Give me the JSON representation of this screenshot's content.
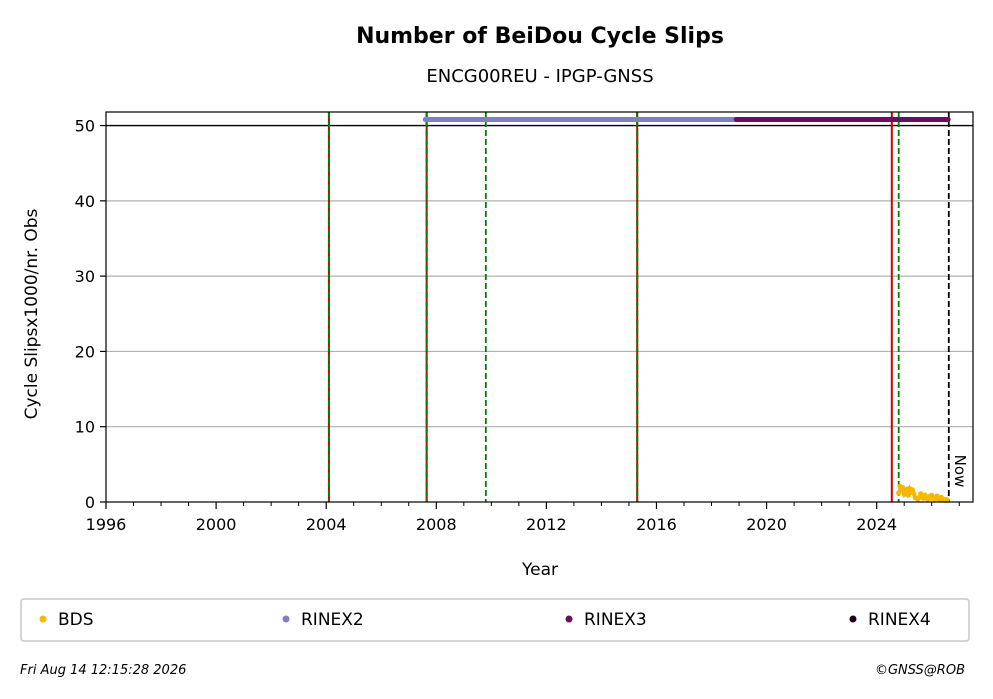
{
  "chart_data": {
    "type": "line",
    "title": "Number of BeiDou Cycle Slips",
    "subtitle": "ENCG00REU - IPGP-GNSS",
    "xlabel": "Year",
    "ylabel": "Cycle Slipsx1000/nr. Obs",
    "xlim": [
      1996,
      2027.5
    ],
    "ylim": [
      0,
      51.8
    ],
    "x_ticks": [
      1996,
      2000,
      2004,
      2008,
      2012,
      2016,
      2020,
      2024
    ],
    "y_ticks": [
      0,
      10,
      20,
      30,
      40,
      50
    ],
    "grid": "horizontal",
    "legend_position": "bottom",
    "series": [
      {
        "name": "BDS",
        "color": "#f5b800",
        "x": [
          2024.8,
          2024.85,
          2024.9,
          2024.95,
          2025.0,
          2025.05,
          2025.1,
          2025.15,
          2025.2,
          2025.25,
          2025.3,
          2025.35,
          2025.4,
          2025.45,
          2025.5,
          2025.55,
          2025.6,
          2025.65,
          2025.7,
          2025.75,
          2025.8,
          2025.85,
          2025.9,
          2025.95,
          2026.0,
          2026.05,
          2026.1,
          2026.15,
          2026.2,
          2026.25,
          2026.3,
          2026.35,
          2026.4,
          2026.45,
          2026.5,
          2026.55
        ],
        "y": [
          1.2,
          2.1,
          1.6,
          1.9,
          1.0,
          1.4,
          1.7,
          0.9,
          1.8,
          1.3,
          1.6,
          1.1,
          0.6,
          0.5,
          0.4,
          0.6,
          1.1,
          0.8,
          0.5,
          0.9,
          0.6,
          0.4,
          0.7,
          0.5,
          0.9,
          0.6,
          0.4,
          0.5,
          0.8,
          0.4,
          0.3,
          0.6,
          0.4,
          0.3,
          0.2,
          0.3
        ]
      },
      {
        "name": "RINEX2",
        "color": "#8080c0",
        "x_range": [
          2007.6,
          2018.9
        ],
        "y": 50.8
      },
      {
        "name": "RINEX3",
        "color": "#6a0f5a",
        "x_range": [
          2018.9,
          2026.6
        ],
        "y": 50.8
      },
      {
        "name": "RINEX4",
        "color": "#1a0018",
        "x_range": [],
        "y": 50.8
      }
    ],
    "hlines": [
      {
        "y": 50,
        "color": "#000000",
        "style": "solid"
      }
    ],
    "vlines": [
      {
        "x": 2004.1,
        "colors": [
          "#008000",
          "#d00000"
        ],
        "style": "green-red-dashed"
      },
      {
        "x": 2007.65,
        "colors": [
          "#008000",
          "#d00000"
        ],
        "style": "green-red-dashed"
      },
      {
        "x": 2009.8,
        "colors": [
          "#008000"
        ],
        "style": "dashed"
      },
      {
        "x": 2015.3,
        "colors": [
          "#008000",
          "#d00000"
        ],
        "style": "green-red-dashed"
      },
      {
        "x": 2024.55,
        "colors": [
          "#d00000"
        ],
        "style": "solid"
      },
      {
        "x": 2024.8,
        "colors": [
          "#008000"
        ],
        "style": "dashed"
      },
      {
        "x": 2026.62,
        "colors": [
          "#000000"
        ],
        "style": "dashed"
      }
    ],
    "now_label": "Now"
  },
  "footer": {
    "timestamp": "Fri Aug 14 12:15:28 2026",
    "credit": "©GNSS@ROB"
  }
}
